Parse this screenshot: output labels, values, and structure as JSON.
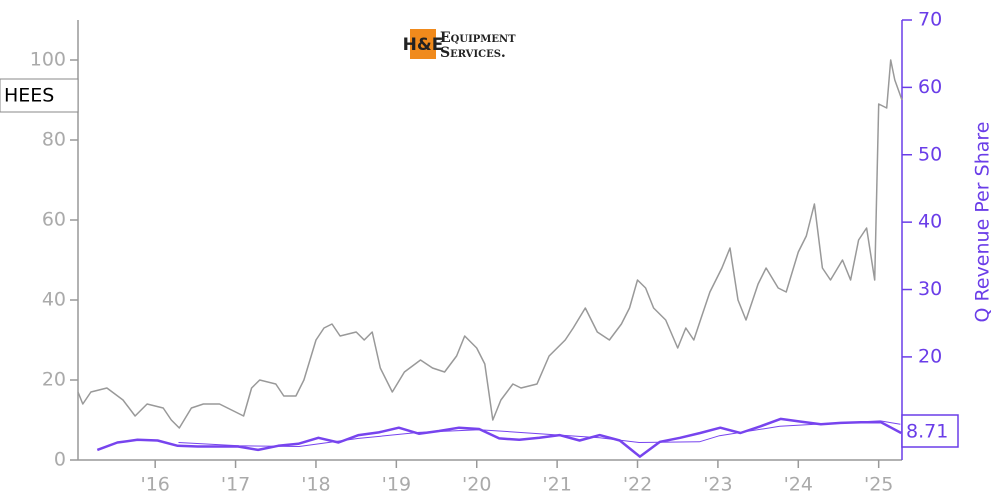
{
  "chart_data": {
    "type": "line",
    "logo": {
      "mark": "H&E",
      "line1": "Equipment",
      "line2": "Services."
    },
    "y2label": "Q Revenue Per Share",
    "xlim": [
      2015.04,
      2025.29
    ],
    "xticks": [
      {
        "value": 2016,
        "label": "'16"
      },
      {
        "value": 2017,
        "label": "'17"
      },
      {
        "value": 2018,
        "label": "'18"
      },
      {
        "value": 2019,
        "label": "'19"
      },
      {
        "value": 2020,
        "label": "'20"
      },
      {
        "value": 2021,
        "label": "'21"
      },
      {
        "value": 2022,
        "label": "'22"
      },
      {
        "value": 2023,
        "label": "'23"
      },
      {
        "value": 2024,
        "label": "'24"
      },
      {
        "value": 2025,
        "label": "'25"
      }
    ],
    "ylim": [
      0,
      110
    ],
    "yticks": [
      0,
      20,
      40,
      60,
      80,
      100
    ],
    "y2lim": [
      4.7,
      70
    ],
    "y2ticks": [
      20,
      30,
      40,
      50,
      60,
      70
    ],
    "series": [
      {
        "name": "HEES",
        "color": "#999999",
        "width": 1.5,
        "x": [
          2015.04,
          2015.1,
          2015.2,
          2015.4,
          2015.6,
          2015.75,
          2015.9,
          2016.1,
          2016.2,
          2016.3,
          2016.45,
          2016.6,
          2016.8,
          2017.0,
          2017.1,
          2017.2,
          2017.3,
          2017.5,
          2017.6,
          2017.75,
          2017.85,
          2018.0,
          2018.1,
          2018.2,
          2018.3,
          2018.5,
          2018.6,
          2018.7,
          2018.8,
          2018.95,
          2019.1,
          2019.3,
          2019.45,
          2019.6,
          2019.75,
          2019.85,
          2020.0,
          2020.1,
          2020.2,
          2020.3,
          2020.45,
          2020.55,
          2020.75,
          2020.9,
          2021.1,
          2021.2,
          2021.35,
          2021.5,
          2021.65,
          2021.8,
          2021.9,
          2022.0,
          2022.1,
          2022.2,
          2022.35,
          2022.5,
          2022.6,
          2022.7,
          2022.8,
          2022.9,
          2023.05,
          2023.15,
          2023.25,
          2023.35,
          2023.5,
          2023.6,
          2023.75,
          2023.85,
          2024.0,
          2024.1,
          2024.2,
          2024.3,
          2024.4,
          2024.55,
          2024.65,
          2024.75,
          2024.85,
          2024.95,
          2025.0,
          2025.1,
          2025.15,
          2025.2,
          2025.29
        ],
        "values": [
          17,
          14,
          17,
          18,
          15,
          11,
          14,
          13,
          10,
          8,
          13,
          14,
          14,
          12,
          11,
          18,
          20,
          19,
          16,
          16,
          20,
          30,
          33,
          34,
          31,
          32,
          30,
          32,
          23,
          17,
          22,
          25,
          23,
          22,
          26,
          31,
          28,
          24,
          10,
          15,
          19,
          18,
          19,
          26,
          30,
          33,
          38,
          32,
          30,
          34,
          38,
          45,
          43,
          38,
          35,
          28,
          33,
          30,
          36,
          42,
          48,
          53,
          40,
          35,
          44,
          48,
          43,
          42,
          52,
          56,
          64,
          48,
          45,
          50,
          45,
          55,
          58,
          45,
          89,
          88,
          100,
          95,
          90
        ]
      },
      {
        "color": "#7744ee",
        "width": 1,
        "axis": "y2",
        "x": [
          2016.29,
          2017.04,
          2017.79,
          2018.53,
          2019.28,
          2020.03,
          2020.78,
          2021.53,
          2022.02,
          2022.77,
          2023.02,
          2023.77,
          2024.52,
          2025.02,
          2025.27
        ],
        "values": [
          7.3,
          6.8,
          6.7,
          7.9,
          8.8,
          9.2,
          8.6,
          8.0,
          7.3,
          7.4,
          8.3,
          9.7,
          10.2,
          10.5,
          10.0
        ]
      },
      {
        "color": "#7744ee",
        "width": 2.5,
        "axis": "y2",
        "x": [
          2015.28,
          2015.53,
          2015.78,
          2016.03,
          2016.28,
          2016.53,
          2016.78,
          2017.03,
          2017.28,
          2017.53,
          2017.78,
          2018.03,
          2018.28,
          2018.53,
          2018.78,
          2019.03,
          2019.28,
          2019.53,
          2019.78,
          2020.03,
          2020.28,
          2020.53,
          2020.78,
          2021.03,
          2021.28,
          2021.53,
          2021.78,
          2022.03,
          2022.28,
          2022.53,
          2022.78,
          2023.03,
          2023.28,
          2023.53,
          2023.78,
          2024.03,
          2024.28,
          2024.53,
          2024.78,
          2025.03,
          2025.28
        ],
        "values": [
          6.2,
          7.3,
          7.7,
          7.6,
          6.8,
          6.7,
          6.7,
          6.7,
          6.2,
          6.8,
          7.1,
          8.0,
          7.3,
          8.4,
          8.8,
          9.5,
          8.6,
          9.0,
          9.5,
          9.3,
          7.9,
          7.7,
          8.0,
          8.4,
          7.6,
          8.4,
          7.6,
          5.2,
          7.4,
          8.0,
          8.7,
          9.5,
          8.7,
          9.7,
          10.8,
          10.4,
          10.0,
          10.2,
          10.3,
          10.3,
          8.71
        ]
      }
    ]
  }
}
